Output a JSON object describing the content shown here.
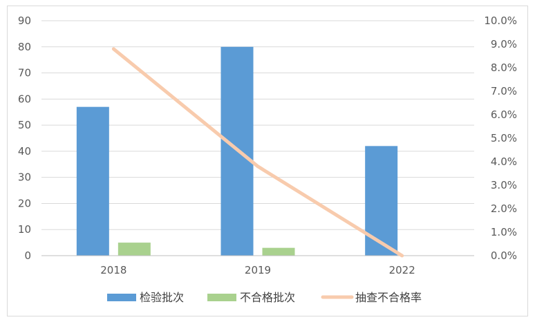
{
  "chart_data": {
    "type": "bar",
    "categories": [
      "2018",
      "2019",
      "2022"
    ],
    "series": [
      {
        "name": "检验批次",
        "kind": "bar",
        "axis": "left",
        "color": "#5b9bd5",
        "values": [
          57,
          80,
          42
        ]
      },
      {
        "name": "不合格批次",
        "kind": "bar",
        "axis": "left",
        "color": "#a9d18e",
        "values": [
          5,
          3,
          0
        ]
      },
      {
        "name": "抽查不合格率",
        "kind": "line",
        "axis": "right",
        "color": "#f8cbad",
        "values": [
          0.088,
          0.038,
          0.0
        ]
      }
    ],
    "y_left": {
      "min": 0,
      "max": 90,
      "step": 10,
      "ticks": [
        "0",
        "10",
        "20",
        "30",
        "40",
        "50",
        "60",
        "70",
        "80",
        "90"
      ]
    },
    "y_right": {
      "min": 0,
      "max": 0.1,
      "ticks": [
        "0.0%",
        "1.0%",
        "2.0%",
        "3.0%",
        "4.0%",
        "5.0%",
        "6.0%",
        "7.0%",
        "8.0%",
        "9.0%",
        "10.0%"
      ]
    },
    "grid": true,
    "legend_position": "bottom"
  }
}
